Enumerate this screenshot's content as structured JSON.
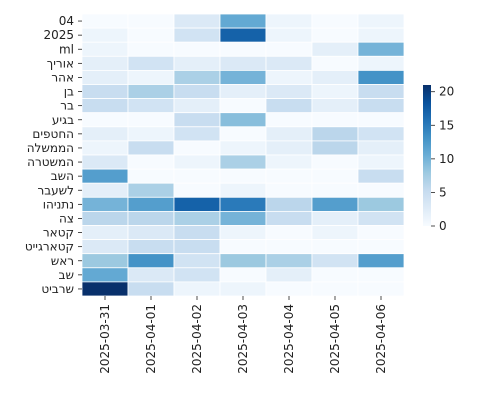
{
  "chart_data": {
    "type": "heatmap",
    "title": "",
    "xlabel": "",
    "ylabel": "",
    "x_categories": [
      "2025-03-31",
      "2025-04-01",
      "2025-04-02",
      "2025-04-03",
      "2025-04-04",
      "2025-04-05",
      "2025-04-06"
    ],
    "y_categories": [
      "04",
      "2025",
      "ml",
      "אוריך",
      "אהר",
      "בן",
      "בר",
      "בגיע",
      "החטפים",
      "הממשלה",
      "המשטרה",
      "השב",
      "לשעבר",
      "נתניהו",
      "צה",
      "קטאר",
      "קטארגייט",
      "ראש",
      "שב",
      "שרביט"
    ],
    "values": [
      [
        0,
        0,
        3,
        11,
        1,
        0,
        1
      ],
      [
        1,
        0,
        4,
        17,
        1,
        0,
        1
      ],
      [
        1,
        0,
        0,
        0,
        0,
        2,
        10
      ],
      [
        2,
        4,
        2,
        3,
        3,
        0,
        1
      ],
      [
        2,
        1,
        7,
        10,
        1,
        2,
        13
      ],
      [
        5,
        7,
        5,
        2,
        3,
        1,
        5
      ],
      [
        5,
        4,
        2,
        0,
        5,
        2,
        5
      ],
      [
        0,
        0,
        5,
        9,
        0,
        0,
        0
      ],
      [
        2,
        1,
        4,
        0,
        2,
        6,
        4
      ],
      [
        1,
        5,
        0,
        1,
        2,
        6,
        2
      ],
      [
        3,
        0,
        1,
        7,
        1,
        0,
        1
      ],
      [
        12,
        0,
        0,
        0,
        0,
        0,
        5
      ],
      [
        2,
        7,
        0,
        1,
        0,
        0,
        0
      ],
      [
        10,
        12,
        17,
        15,
        6,
        12,
        8
      ],
      [
        6,
        6,
        7,
        10,
        5,
        2,
        4
      ],
      [
        2,
        3,
        5,
        1,
        0,
        1,
        0
      ],
      [
        3,
        5,
        5,
        0,
        0,
        0,
        0
      ],
      [
        8,
        13,
        4,
        8,
        7,
        4,
        12
      ],
      [
        11,
        3,
        4,
        0,
        2,
        0,
        0
      ],
      [
        21,
        5,
        1,
        1,
        0,
        0,
        0
      ]
    ],
    "vmin": 0,
    "vmax": 21,
    "colorbar_ticks": [
      0,
      5,
      10,
      15,
      20
    ],
    "colormap": "Blues",
    "colors": {
      "low": "#f7fbff",
      "high": "#08306b"
    }
  }
}
